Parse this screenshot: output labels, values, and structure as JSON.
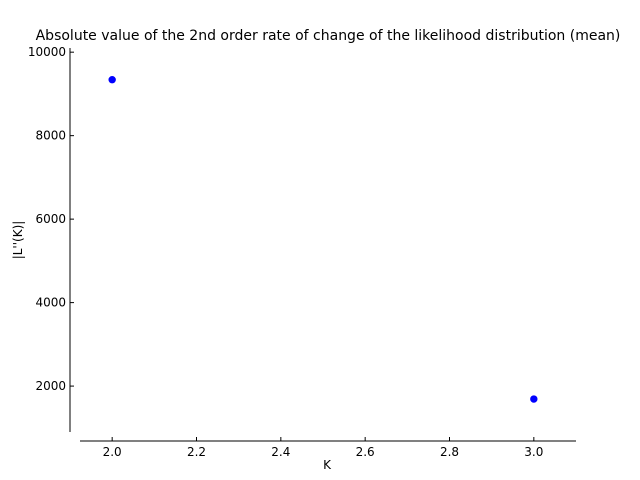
{
  "chart_data": {
    "type": "scatter",
    "title": "Absolute value of the 2nd order rate of change of the likelihood distribution (mean)",
    "xlabel": "K",
    "ylabel": "|L''(K)|",
    "xlim": [
      1.9,
      3.1
    ],
    "ylim": [
      900,
      10100
    ],
    "x_ticks": [
      2.0,
      2.2,
      2.4,
      2.6,
      2.8,
      3.0
    ],
    "x_tick_labels": [
      "2.0",
      "2.2",
      "2.4",
      "2.6",
      "2.8",
      "3.0"
    ],
    "y_ticks": [
      2000,
      4000,
      6000,
      8000,
      10000
    ],
    "y_tick_labels": [
      "2000",
      "4000",
      "6000",
      "8000",
      "10000"
    ],
    "grid": false,
    "series": [
      {
        "x": [
          2.0,
          3.0
        ],
        "y": [
          9340,
          1690
        ],
        "color": "#0000ff"
      }
    ]
  }
}
